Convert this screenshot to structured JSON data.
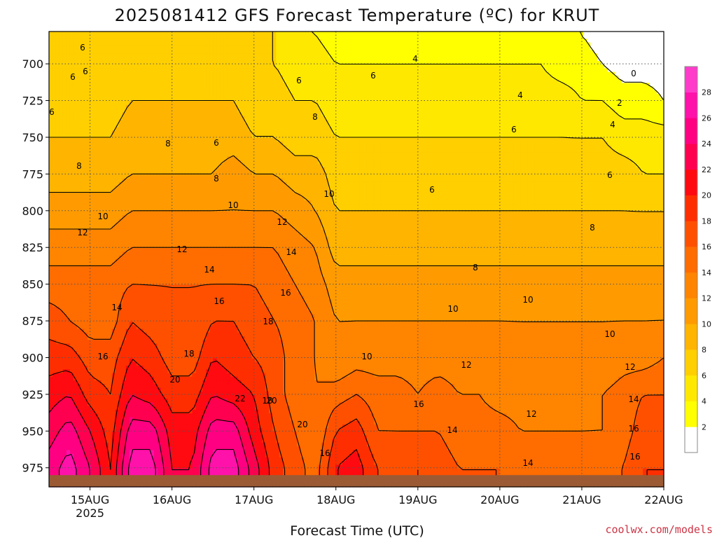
{
  "chart_data": {
    "type": "heatmap",
    "title": "2025081412 GFS Forecast Temperature (ºC) for KRUT",
    "xlabel": "Forecast Time (UTC)",
    "ylabel": "",
    "credit": "coolwx.com/models",
    "y_axis": {
      "unit": "hPa",
      "ticks": [
        700,
        725,
        750,
        775,
        800,
        825,
        850,
        875,
        900,
        925,
        950,
        975
      ],
      "range": [
        988,
        678
      ],
      "tick_labels": [
        "700",
        "725",
        "750",
        "775",
        "800",
        "825",
        "850",
        "875",
        "900",
        "925",
        "950",
        "975"
      ]
    },
    "x_axis": {
      "range": [
        "2025-08-14 12:00",
        "2025-08-22 00:00"
      ],
      "ticks": [
        "2025-08-15 00:00",
        "2025-08-16 00:00",
        "2025-08-17 00:00",
        "2025-08-18 00:00",
        "2025-08-19 00:00",
        "2025-08-20 00:00",
        "2025-08-21 00:00",
        "2025-08-22 00:00"
      ],
      "tick_labels": [
        "15AUG",
        "16AUG",
        "17AUG",
        "18AUG",
        "19AUG",
        "20AUG",
        "21AUG",
        "22AUG"
      ],
      "year_label": "2025",
      "year_label_under": "15AUG"
    },
    "grid": true,
    "colorbar": {
      "placement": "right",
      "levels": [
        0,
        2,
        4,
        6,
        8,
        10,
        12,
        14,
        16,
        18,
        20,
        22,
        24,
        26,
        28,
        30
      ],
      "labels": [
        "2",
        "4",
        "6",
        "8",
        "10",
        "12",
        "14",
        "16",
        "18",
        "20",
        "22",
        "24",
        "26",
        "28"
      ],
      "colors": [
        "#ffffff",
        "#ffff00",
        "#ffe800",
        "#ffcf00",
        "#ffb400",
        "#ff9b00",
        "#ff8400",
        "#ff6c00",
        "#ff5000",
        "#ff2e00",
        "#ff0a10",
        "#ff0050",
        "#ff0082",
        "#ff12aa",
        "#ff3cca"
      ]
    },
    "ground_color": "#9b5a34",
    "surface_pressure_hPa": 980,
    "time_hours": [
      0,
      6,
      12,
      18,
      24,
      30,
      36,
      42,
      48,
      54,
      60,
      66,
      72,
      78,
      84,
      90,
      96,
      102,
      108,
      114,
      120,
      126,
      132,
      138,
      144,
      150,
      156,
      162,
      168,
      174,
      180
    ],
    "pressure_levels_hPa": [
      680,
      700,
      725,
      750,
      775,
      800,
      825,
      850,
      875,
      900,
      925,
      950,
      975
    ],
    "temperature_C": [
      [
        6,
        6,
        6,
        6,
        7,
        7,
        7,
        7,
        7,
        7,
        6,
        6,
        4,
        4,
        3,
        3,
        3,
        3,
        3,
        3,
        3,
        3,
        3,
        3,
        3,
        2,
        2,
        1,
        0,
        0,
        0
      ],
      [
        6,
        6,
        6,
        6,
        7,
        7,
        7,
        7,
        7,
        7,
        6,
        6,
        5,
        5,
        4,
        4,
        4,
        4,
        4,
        4,
        4,
        4,
        4,
        4,
        4,
        3,
        3,
        2,
        1,
        1,
        1
      ],
      [
        7,
        7,
        7,
        7,
        8,
        8,
        8,
        8,
        8,
        8,
        7,
        7,
        6,
        6,
        5,
        5,
        5,
        5,
        5,
        5,
        5,
        5,
        5,
        5,
        5,
        5,
        4,
        4,
        3,
        3,
        2
      ],
      [
        8,
        8,
        8,
        8,
        9,
        9,
        9,
        9,
        9,
        9,
        8,
        8,
        7,
        7,
        6,
        6,
        6,
        6,
        6,
        6,
        6,
        6,
        6,
        6,
        6,
        6,
        6,
        6,
        5,
        5,
        5
      ],
      [
        9,
        9,
        9,
        9,
        10,
        10,
        10,
        10,
        10,
        11,
        10,
        10,
        9,
        9,
        7,
        7,
        7,
        7,
        7,
        7,
        7,
        7,
        7,
        7,
        7,
        7,
        7,
        7,
        7,
        6,
        6
      ],
      [
        11,
        11,
        11,
        11,
        12,
        12,
        12,
        12,
        12,
        12,
        12,
        12,
        11,
        10,
        8,
        8,
        8,
        8,
        8,
        8,
        8,
        8,
        8,
        8,
        8,
        8,
        8,
        8,
        8,
        8,
        8
      ],
      [
        13,
        13,
        13,
        13,
        14,
        14,
        14,
        14,
        14,
        14,
        14,
        14,
        13,
        12,
        9,
        9,
        9,
        9,
        9,
        9,
        9,
        9,
        9,
        9,
        9,
        9,
        9,
        9,
        9,
        9,
        9
      ],
      [
        15,
        15,
        15,
        15,
        16,
        16,
        16,
        16,
        16,
        16,
        16,
        15,
        14,
        13,
        11,
        11,
        11,
        11,
        11,
        11,
        11,
        11,
        11,
        11,
        11,
        11,
        11,
        11,
        11,
        11,
        11
      ],
      [
        17,
        16,
        15,
        15,
        18,
        17,
        16,
        16,
        18,
        18,
        17,
        16,
        15,
        14,
        12,
        12,
        12,
        12,
        12,
        12,
        12,
        12,
        12,
        12,
        12,
        12,
        12,
        12,
        12,
        12,
        12
      ],
      [
        19,
        19,
        17,
        17,
        20,
        19,
        17,
        17,
        20,
        19,
        18,
        17,
        15,
        14,
        12,
        13,
        13,
        13,
        13,
        13,
        13,
        13,
        13,
        12,
        12,
        12,
        12,
        12,
        13,
        13,
        14
      ],
      [
        21,
        22,
        19,
        18,
        22,
        21,
        19,
        19,
        22,
        21,
        20,
        17,
        15,
        14,
        15,
        16,
        15,
        15,
        14,
        15,
        14,
        14,
        13,
        13,
        13,
        13,
        13,
        14,
        15,
        16,
        16
      ],
      [
        23,
        25,
        22,
        19,
        25,
        25,
        21,
        21,
        25,
        25,
        21,
        18,
        16,
        14,
        18,
        19,
        16,
        16,
        16,
        16,
        15,
        15,
        15,
        14,
        14,
        14,
        14,
        14,
        15,
        17,
        17
      ],
      [
        25,
        27,
        24,
        20,
        27,
        27,
        22,
        22,
        27,
        27,
        23,
        19,
        17,
        15,
        20,
        21,
        18,
        17,
        18,
        17,
        16,
        16,
        16,
        15,
        15,
        15,
        15,
        15,
        16,
        18,
        18
      ]
    ],
    "contour_labels": [
      {
        "value": 6,
        "label": "6"
      },
      {
        "value": 6,
        "label": "6"
      },
      {
        "value": 6,
        "label": "6"
      },
      {
        "value": 6,
        "label": "6"
      },
      {
        "value": 6,
        "label": "6"
      },
      {
        "value": 6,
        "label": "6"
      },
      {
        "value": 6,
        "label": "6"
      },
      {
        "value": 6,
        "label": "6"
      },
      {
        "value": 6,
        "label": "6"
      },
      {
        "value": 6,
        "label": "6"
      },
      {
        "value": 4,
        "label": "4"
      },
      {
        "value": 4,
        "label": "4"
      },
      {
        "value": 4,
        "label": "4"
      },
      {
        "value": 2,
        "label": "2"
      },
      {
        "value": 0,
        "label": "0"
      },
      {
        "value": 8,
        "label": "8"
      },
      {
        "value": 8,
        "label": "8"
      },
      {
        "value": 8,
        "label": "8"
      },
      {
        "value": 8,
        "label": "8"
      },
      {
        "value": 8,
        "label": "8"
      },
      {
        "value": 8,
        "label": "8"
      },
      {
        "value": 10,
        "label": "10"
      },
      {
        "value": 10,
        "label": "10"
      },
      {
        "value": 10,
        "label": "10"
      },
      {
        "value": 10,
        "label": "10"
      },
      {
        "value": 10,
        "label": "10"
      },
      {
        "value": 10,
        "label": "10"
      },
      {
        "value": 10,
        "label": "10"
      },
      {
        "value": 12,
        "label": "12"
      },
      {
        "value": 12,
        "label": "12"
      },
      {
        "value": 12,
        "label": "12"
      },
      {
        "value": 12,
        "label": "12"
      },
      {
        "value": 12,
        "label": "12"
      },
      {
        "value": 12,
        "label": "12"
      },
      {
        "value": 14,
        "label": "14"
      },
      {
        "value": 14,
        "label": "14"
      },
      {
        "value": 14,
        "label": "14"
      },
      {
        "value": 14,
        "label": "14"
      },
      {
        "value": 14,
        "label": "14"
      },
      {
        "value": 14,
        "label": "14"
      },
      {
        "value": 16,
        "label": "16"
      },
      {
        "value": 16,
        "label": "16"
      },
      {
        "value": 16,
        "label": "16"
      },
      {
        "value": 16,
        "label": "16"
      },
      {
        "value": 16,
        "label": "16"
      },
      {
        "value": 16,
        "label": "16"
      },
      {
        "value": 16,
        "label": "16"
      },
      {
        "value": 18,
        "label": "18"
      },
      {
        "value": 18,
        "label": "18"
      },
      {
        "value": 18,
        "label": "18"
      },
      {
        "value": 20,
        "label": "20"
      },
      {
        "value": 20,
        "label": "20"
      },
      {
        "value": 20,
        "label": "20"
      },
      {
        "value": 22,
        "label": "22"
      }
    ]
  }
}
